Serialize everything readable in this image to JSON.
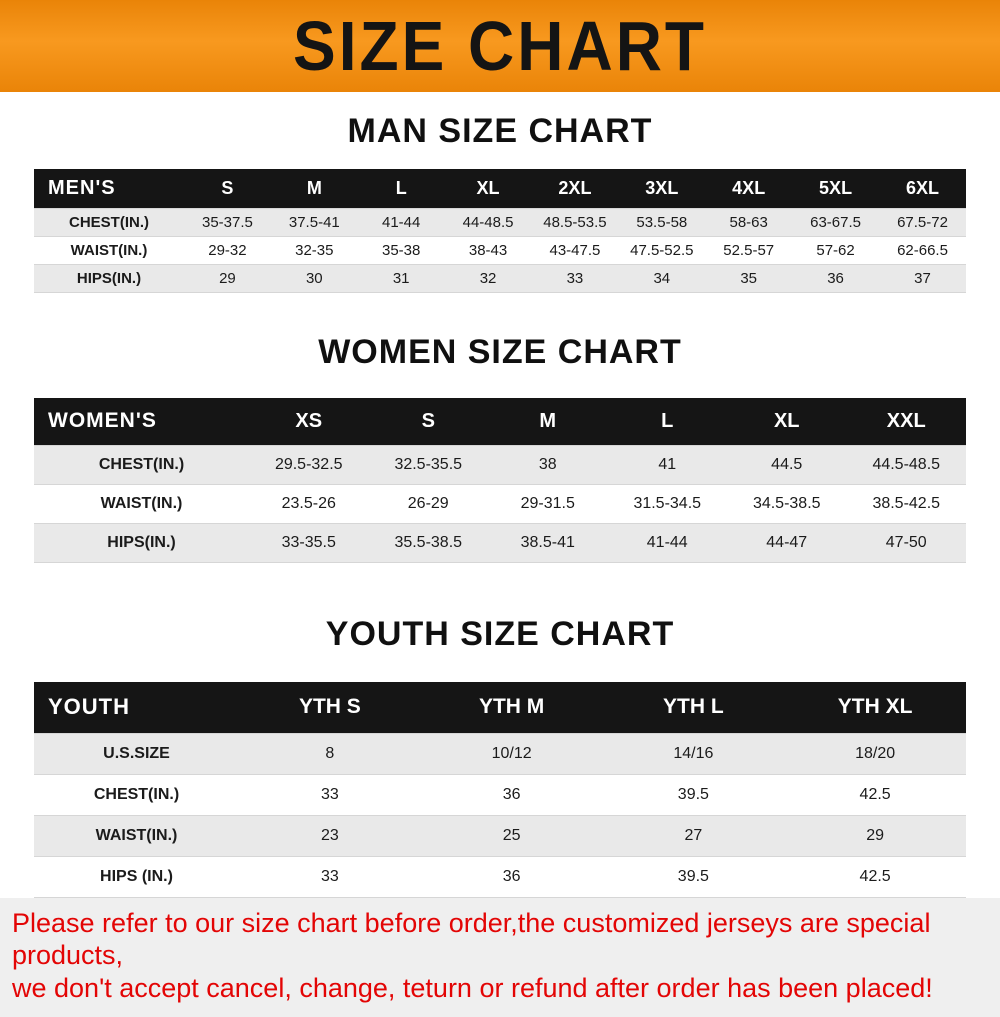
{
  "banner": {
    "title": "SIZE CHART",
    "bg_color": "#f8991f"
  },
  "sections": [
    {
      "heading": "MAN SIZE CHART",
      "table": {
        "header": [
          "MEN'S",
          "S",
          "M",
          "L",
          "XL",
          "2XL",
          "3XL",
          "4XL",
          "5XL",
          "6XL"
        ],
        "rows": [
          [
            "CHEST(IN.)",
            "35-37.5",
            "37.5-41",
            "41-44",
            "44-48.5",
            "48.5-53.5",
            "53.5-58",
            "58-63",
            "63-67.5",
            "67.5-72"
          ],
          [
            "WAIST(IN.)",
            "29-32",
            "32-35",
            "35-38",
            "38-43",
            "43-47.5",
            "47.5-52.5",
            "52.5-57",
            "57-62",
            "62-66.5"
          ],
          [
            "HIPS(IN.)",
            "29",
            "30",
            "31",
            "32",
            "33",
            "34",
            "35",
            "36",
            "37"
          ]
        ]
      }
    },
    {
      "heading": "WOMEN SIZE CHART",
      "table": {
        "header": [
          "WOMEN'S",
          "XS",
          "S",
          "M",
          "L",
          "XL",
          "XXL"
        ],
        "rows": [
          [
            "CHEST(IN.)",
            "29.5-32.5",
            "32.5-35.5",
            "38",
            "41",
            "44.5",
            "44.5-48.5"
          ],
          [
            "WAIST(IN.)",
            "23.5-26",
            "26-29",
            "29-31.5",
            "31.5-34.5",
            "34.5-38.5",
            "38.5-42.5"
          ],
          [
            "HIPS(IN.)",
            "33-35.5",
            "35.5-38.5",
            "38.5-41",
            "41-44",
            "44-47",
            "47-50"
          ]
        ]
      }
    },
    {
      "heading": "YOUTH SIZE CHART",
      "table": {
        "header": [
          "YOUTH",
          "YTH S",
          "YTH M",
          "YTH L",
          "YTH XL"
        ],
        "rows": [
          [
            "U.S.SIZE",
            "8",
            "10/12",
            "14/16",
            "18/20"
          ],
          [
            "CHEST(IN.)",
            "33",
            "36",
            "39.5",
            "42.5"
          ],
          [
            "WAIST(IN.)",
            "23",
            "25",
            "27",
            "29"
          ],
          [
            "HIPS (IN.)",
            "33",
            "36",
            "39.5",
            "42.5"
          ]
        ]
      }
    }
  ],
  "disclaimer": {
    "line1": "Please refer to our size chart before order,the customized jerseys are special products,",
    "line2": "we don't accept cancel, change, teturn or refund after order has been placed!",
    "text_color": "#e30505"
  }
}
